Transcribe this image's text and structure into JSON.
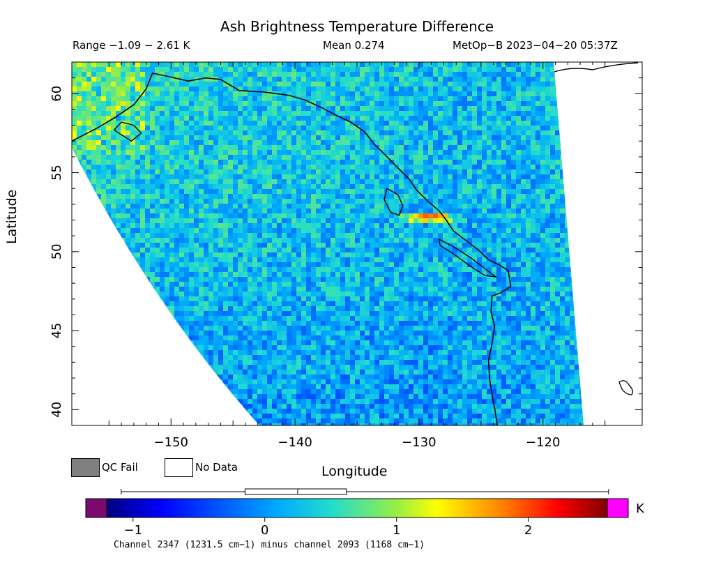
{
  "header": {
    "title": "Ash Brightness Temperature Difference",
    "range": "Range −1.09 − 2.61 K",
    "mean": "Mean 0.274",
    "stamp": "MetOp−B 2023−04−20 05:37Z"
  },
  "legend": {
    "qc_fail": "QC Fail",
    "no_data": "No Data",
    "qc_color": "#808080"
  },
  "colorbar": {
    "unit": "K",
    "caption": "Channel 2347 (1231.5 cm−1) minus channel 2093 (1168 cm−1)",
    "vmin": -1.2,
    "vmax": 2.6,
    "ticks": [
      {
        "v": -1,
        "label": "−1"
      },
      {
        "v": 0,
        "label": "0"
      },
      {
        "v": 1,
        "label": "1"
      },
      {
        "v": 2,
        "label": "2"
      }
    ],
    "under_color": "#7a0a6e",
    "over_color": "#ff00ff",
    "box": {
      "whisker_low": -1.09,
      "q1": -0.15,
      "median": 0.25,
      "q3": 0.62,
      "whisker_high": 2.61
    }
  },
  "chart_data": {
    "type": "heatmap",
    "title": "Ash Brightness Temperature Difference",
    "xlabel": "Longitude",
    "ylabel": "Latitude",
    "xlim": [
      -158,
      -112
    ],
    "ylim": [
      39,
      62
    ],
    "xticks": [
      {
        "v": -150,
        "label": "−150"
      },
      {
        "v": -140,
        "label": "−140"
      },
      {
        "v": -130,
        "label": "−130"
      },
      {
        "v": -120,
        "label": "−120"
      }
    ],
    "yticks": [
      {
        "v": 40,
        "label": "40"
      },
      {
        "v": 45,
        "label": "45"
      },
      {
        "v": 50,
        "label": "50"
      },
      {
        "v": 55,
        "label": "55"
      },
      {
        "v": 60,
        "label": "60"
      }
    ],
    "value_range": [
      -1.09,
      2.61
    ],
    "mean": 0.274,
    "units": "K",
    "hotspot": {
      "lon": -129.5,
      "lat": 52.3,
      "value": 2.5
    },
    "coastline_lonlat": [
      [
        -158,
        57
      ],
      [
        -156,
        57.8
      ],
      [
        -154.5,
        58.5
      ],
      [
        -153,
        59.3
      ],
      [
        -152,
        60.3
      ],
      [
        -151.5,
        61.3
      ],
      [
        -150.3,
        61.1
      ],
      [
        -148.6,
        60.8
      ],
      [
        -147.2,
        61
      ],
      [
        -146,
        60.9
      ],
      [
        -144.5,
        60.2
      ],
      [
        -142.5,
        60.1
      ],
      [
        -140.5,
        59.9
      ],
      [
        -139.2,
        59.6
      ],
      [
        -137.8,
        59.1
      ],
      [
        -136.6,
        58.6
      ],
      [
        -135.5,
        58.2
      ],
      [
        -134.4,
        57.6
      ],
      [
        -133.6,
        56.8
      ],
      [
        -132.7,
        56.1
      ],
      [
        -131.7,
        55.3
      ],
      [
        -130.8,
        54.6
      ],
      [
        -130.2,
        53.9
      ],
      [
        -129.3,
        53.2
      ],
      [
        -128.4,
        52.6
      ],
      [
        -127.8,
        52
      ],
      [
        -127.2,
        51.3
      ],
      [
        -126.2,
        50.7
      ],
      [
        -125.2,
        50.1
      ],
      [
        -124.4,
        49.5
      ],
      [
        -123.4,
        49.1
      ],
      [
        -122.8,
        48.8
      ],
      [
        -122.6,
        47.8
      ],
      [
        -123.4,
        47.4
      ],
      [
        -124.1,
        47.2
      ],
      [
        -124.2,
        46.2
      ],
      [
        -123.9,
        45.3
      ],
      [
        -124.1,
        44.2
      ],
      [
        -124.4,
        43.1
      ],
      [
        -124.3,
        41.9
      ],
      [
        -124.1,
        40.9
      ],
      [
        -123.9,
        40.1
      ],
      [
        -123.7,
        39.1
      ],
      [
        -123.6,
        38.7
      ]
    ],
    "island_lonlat": [
      [
        [
          -132.6,
          54
        ],
        [
          -131.7,
          53.6
        ],
        [
          -131.3,
          52.9
        ],
        [
          -131.6,
          52.3
        ],
        [
          -132.3,
          52.5
        ],
        [
          -132.8,
          53.3
        ],
        [
          -132.6,
          54
        ]
      ],
      [
        [
          -128.4,
          50.8
        ],
        [
          -127.2,
          50.3
        ],
        [
          -125.8,
          49.6
        ],
        [
          -124.8,
          49
        ],
        [
          -123.8,
          48.4
        ],
        [
          -124.7,
          48.5
        ],
        [
          -125.9,
          49.1
        ],
        [
          -127.3,
          49.9
        ],
        [
          -128.3,
          50.4
        ],
        [
          -128.4,
          50.8
        ]
      ],
      [
        [
          -154.6,
          57.7
        ],
        [
          -153.2,
          57
        ],
        [
          -152.4,
          57.5
        ],
        [
          -153,
          58
        ],
        [
          -154,
          58.2
        ],
        [
          -154.6,
          57.7
        ]
      ]
    ]
  }
}
